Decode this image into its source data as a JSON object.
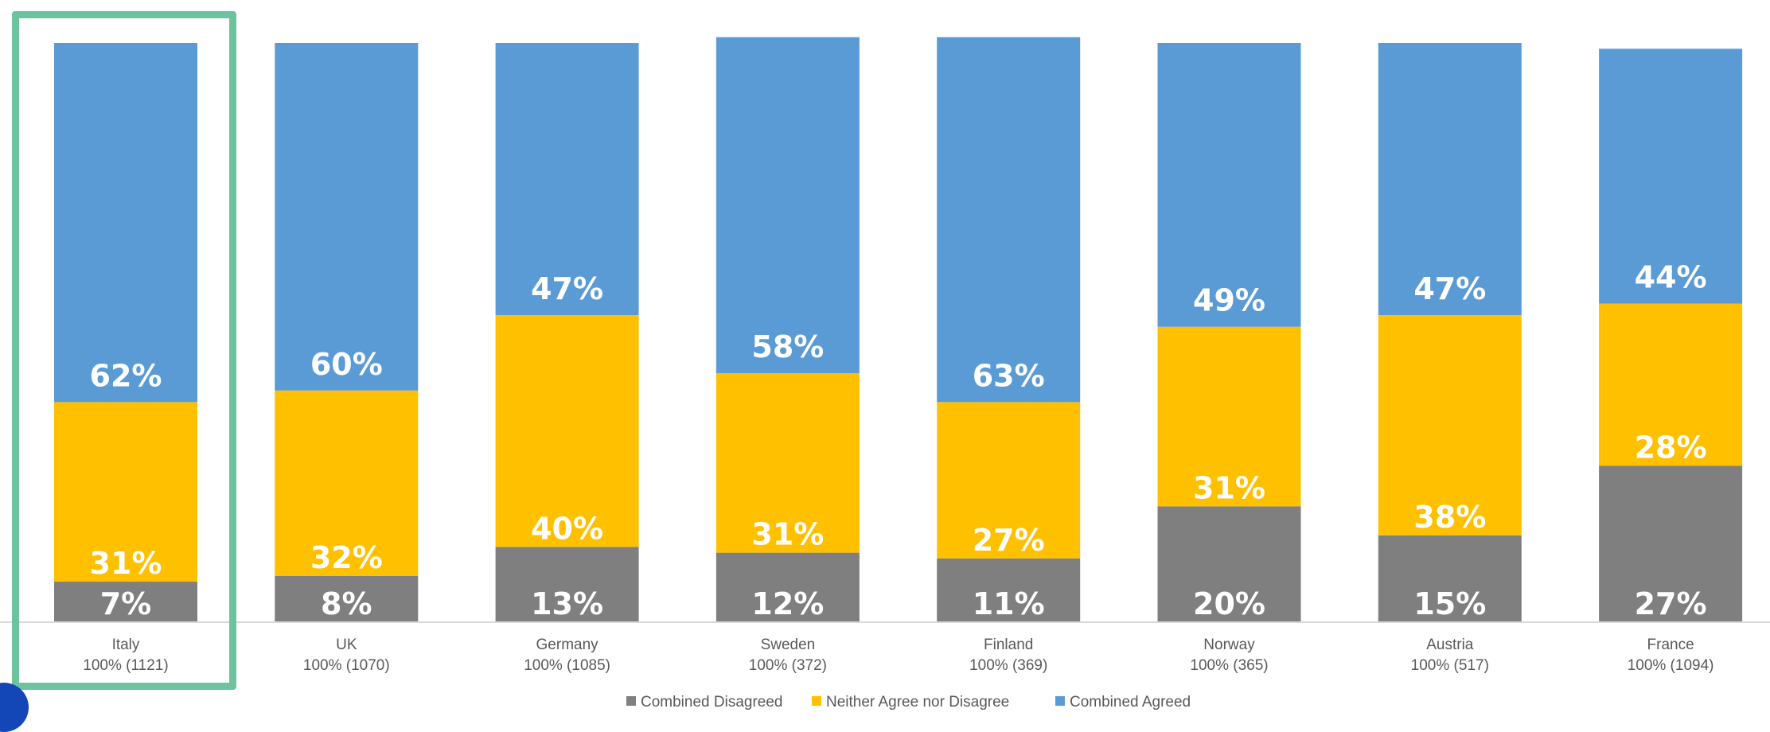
{
  "chart_data": {
    "type": "bar",
    "stacked": true,
    "normalized_percent": true,
    "categories": [
      "Italy",
      "UK",
      "Germany",
      "Sweden",
      "Finland",
      "Norway",
      "Austria",
      "France"
    ],
    "category_sublabels": [
      "100% (1121)",
      "100% (1070)",
      "100% (1085)",
      "100% (372)",
      "100% (369)",
      "100% (365)",
      "100% (517)",
      "100% (1094)"
    ],
    "series": [
      {
        "name": "Combined Disagreed",
        "color": "#7f7f7f",
        "values": [
          7,
          8,
          13,
          12,
          11,
          20,
          15,
          27
        ]
      },
      {
        "name": "Neither Agree nor Disagree",
        "color": "#ffc000",
        "values": [
          31,
          32,
          40,
          31,
          27,
          31,
          38,
          28
        ]
      },
      {
        "name": "Combined Agreed",
        "color": "#5b9bd5",
        "values": [
          62,
          60,
          47,
          58,
          63,
          49,
          47,
          44
        ]
      }
    ],
    "value_suffix": "%",
    "ylim": [
      0,
      100
    ],
    "grid": false,
    "legend_position": "bottom",
    "highlighted_category": "Italy",
    "highlight_color": "#6cc39d"
  }
}
